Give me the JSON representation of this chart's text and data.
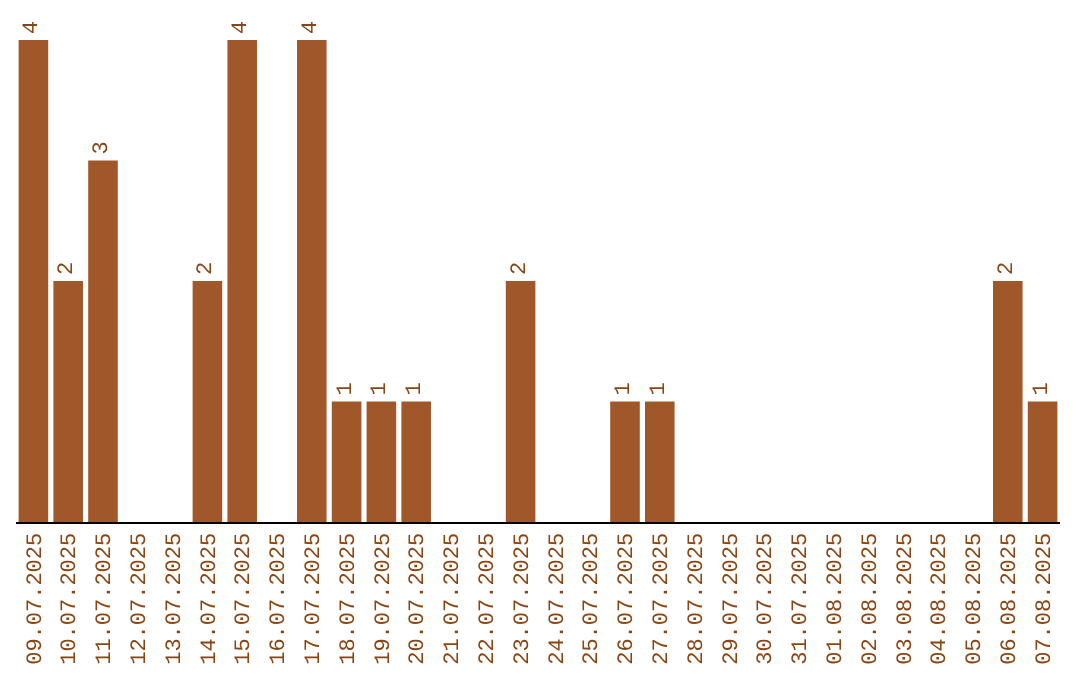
{
  "chart_data": {
    "type": "bar",
    "categories": [
      "09.07.2025",
      "10.07.2025",
      "11.07.2025",
      "12.07.2025",
      "13.07.2025",
      "14.07.2025",
      "15.07.2025",
      "16.07.2025",
      "17.07.2025",
      "18.07.2025",
      "19.07.2025",
      "20.07.2025",
      "21.07.2025",
      "22.07.2025",
      "23.07.2025",
      "24.07.2025",
      "25.07.2025",
      "26.07.2025",
      "27.07.2025",
      "28.07.2025",
      "29.07.2025",
      "30.07.2025",
      "31.07.2025",
      "01.08.2025",
      "02.08.2025",
      "03.08.2025",
      "04.08.2025",
      "05.08.2025",
      "06.08.2025",
      "07.08.2025"
    ],
    "values": [
      4,
      2,
      3,
      0,
      0,
      2,
      4,
      0,
      4,
      1,
      1,
      1,
      0,
      0,
      2,
      0,
      0,
      1,
      1,
      0,
      0,
      0,
      0,
      0,
      0,
      0,
      0,
      0,
      2,
      1
    ],
    "value_labels": [
      "4",
      "2",
      "3",
      null,
      null,
      "2",
      "4",
      null,
      "4",
      "1",
      "1",
      "1",
      null,
      null,
      "2",
      null,
      null,
      "1",
      "1",
      null,
      null,
      null,
      null,
      null,
      null,
      null,
      null,
      null,
      "2",
      "1"
    ],
    "color": "#a0582a",
    "legend": false
  }
}
